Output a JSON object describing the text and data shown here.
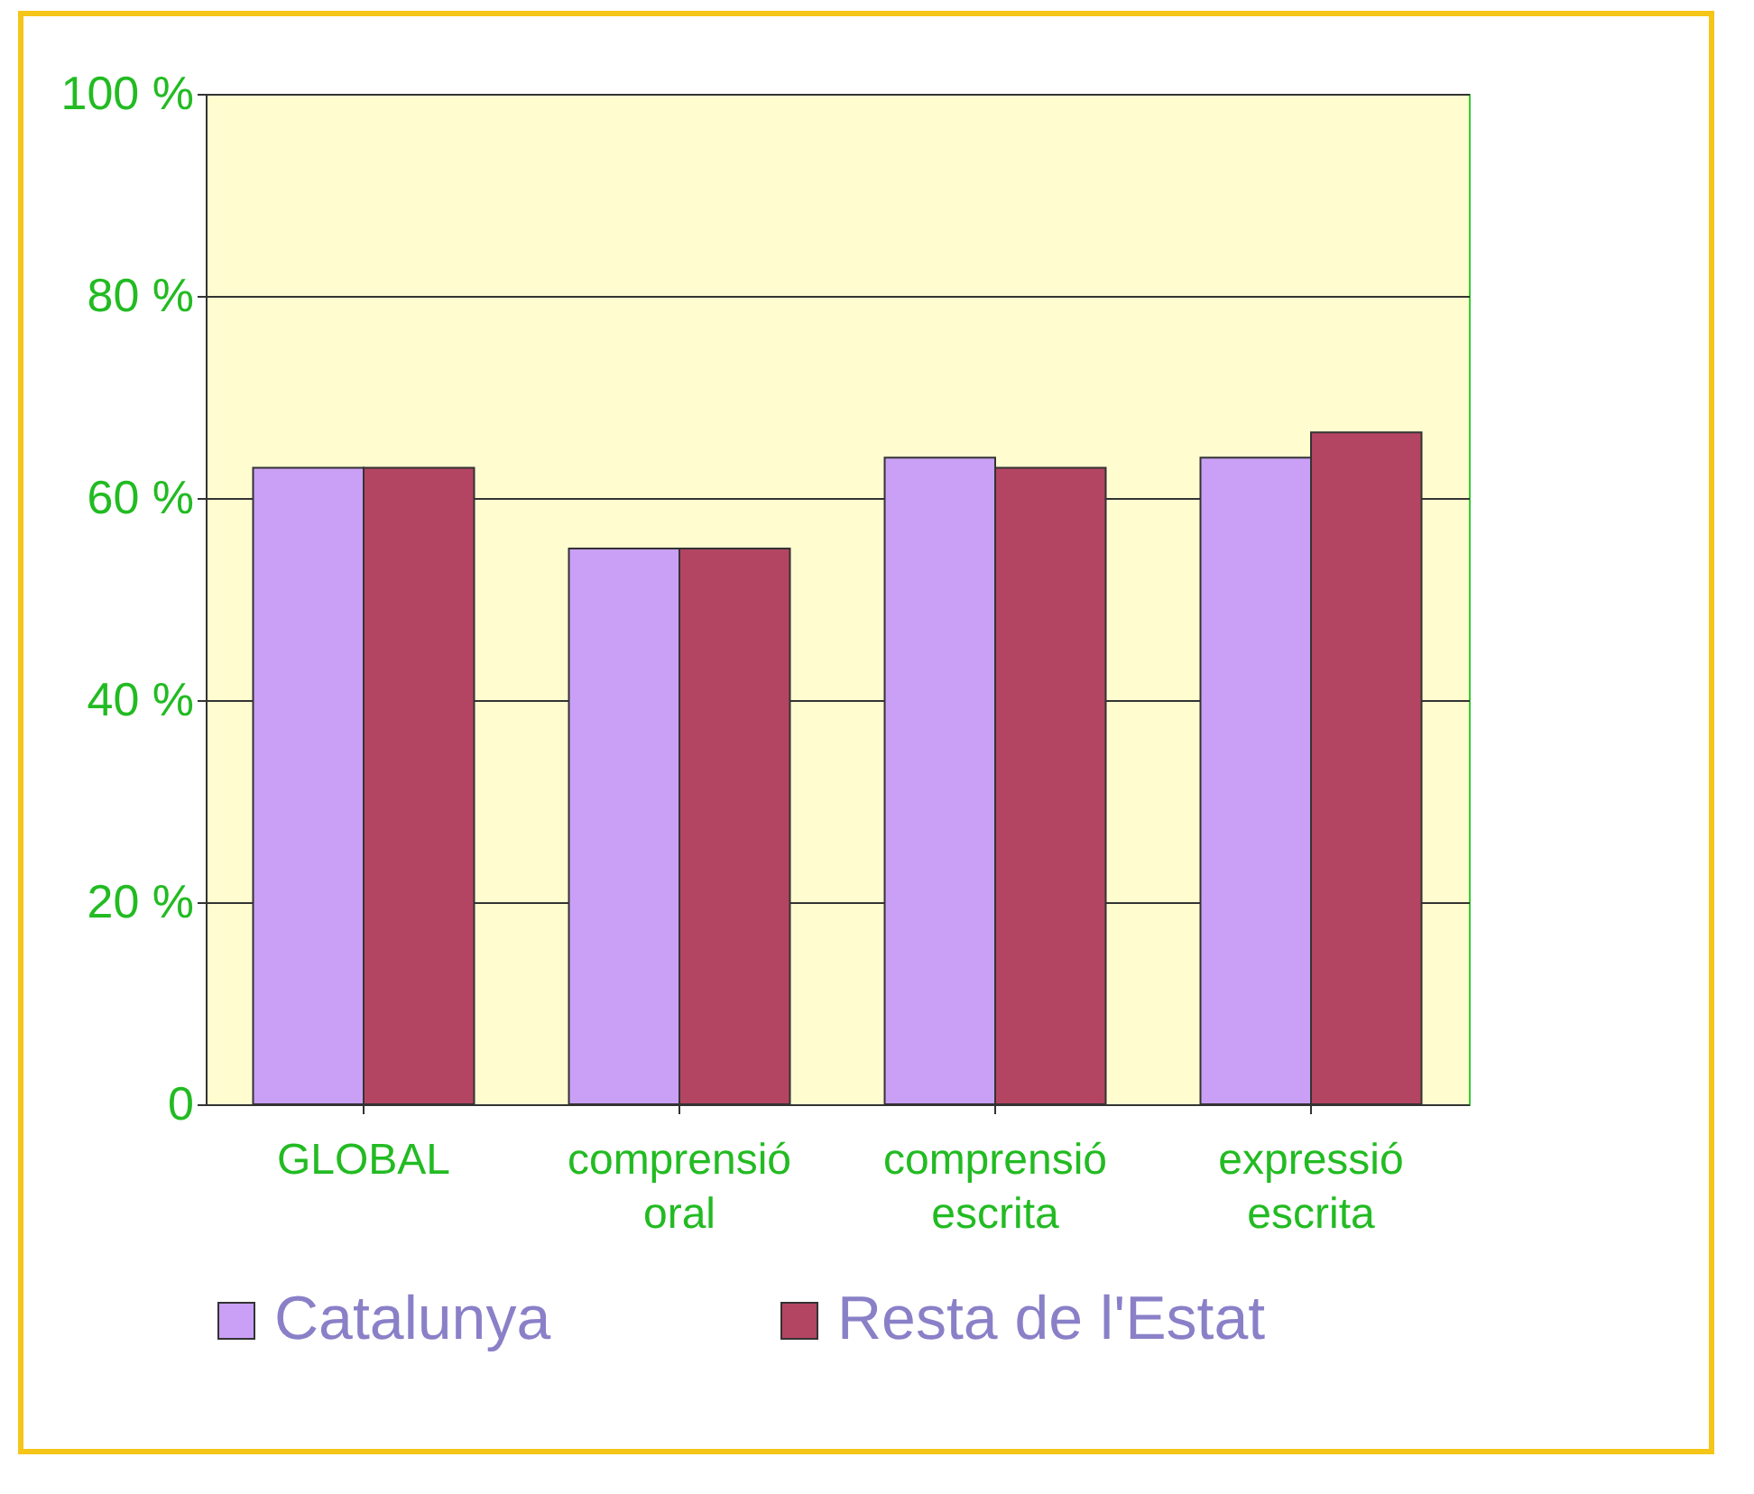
{
  "chart_data": {
    "type": "bar",
    "categories": [
      "GLOBAL",
      "comprensió oral",
      "comprensió escrita",
      "expressió escrita"
    ],
    "series": [
      {
        "name": "Catalunya",
        "color": "#c9a0f5",
        "values": [
          63,
          55,
          64,
          64
        ]
      },
      {
        "name": "Resta de l'Estat",
        "color": "#b34563",
        "values": [
          63,
          55,
          63,
          66.5
        ]
      }
    ],
    "ylim": [
      0,
      100
    ],
    "yticks": [
      0,
      {
        "value": 20,
        "label": "20 %"
      },
      {
        "value": 40,
        "label": "40 %"
      },
      {
        "value": 60,
        "label": "60 %"
      },
      {
        "value": 80,
        "label": "80 %"
      },
      {
        "value": 100,
        "label": "100 %"
      }
    ],
    "grid": "y",
    "legend": "bottom"
  }
}
